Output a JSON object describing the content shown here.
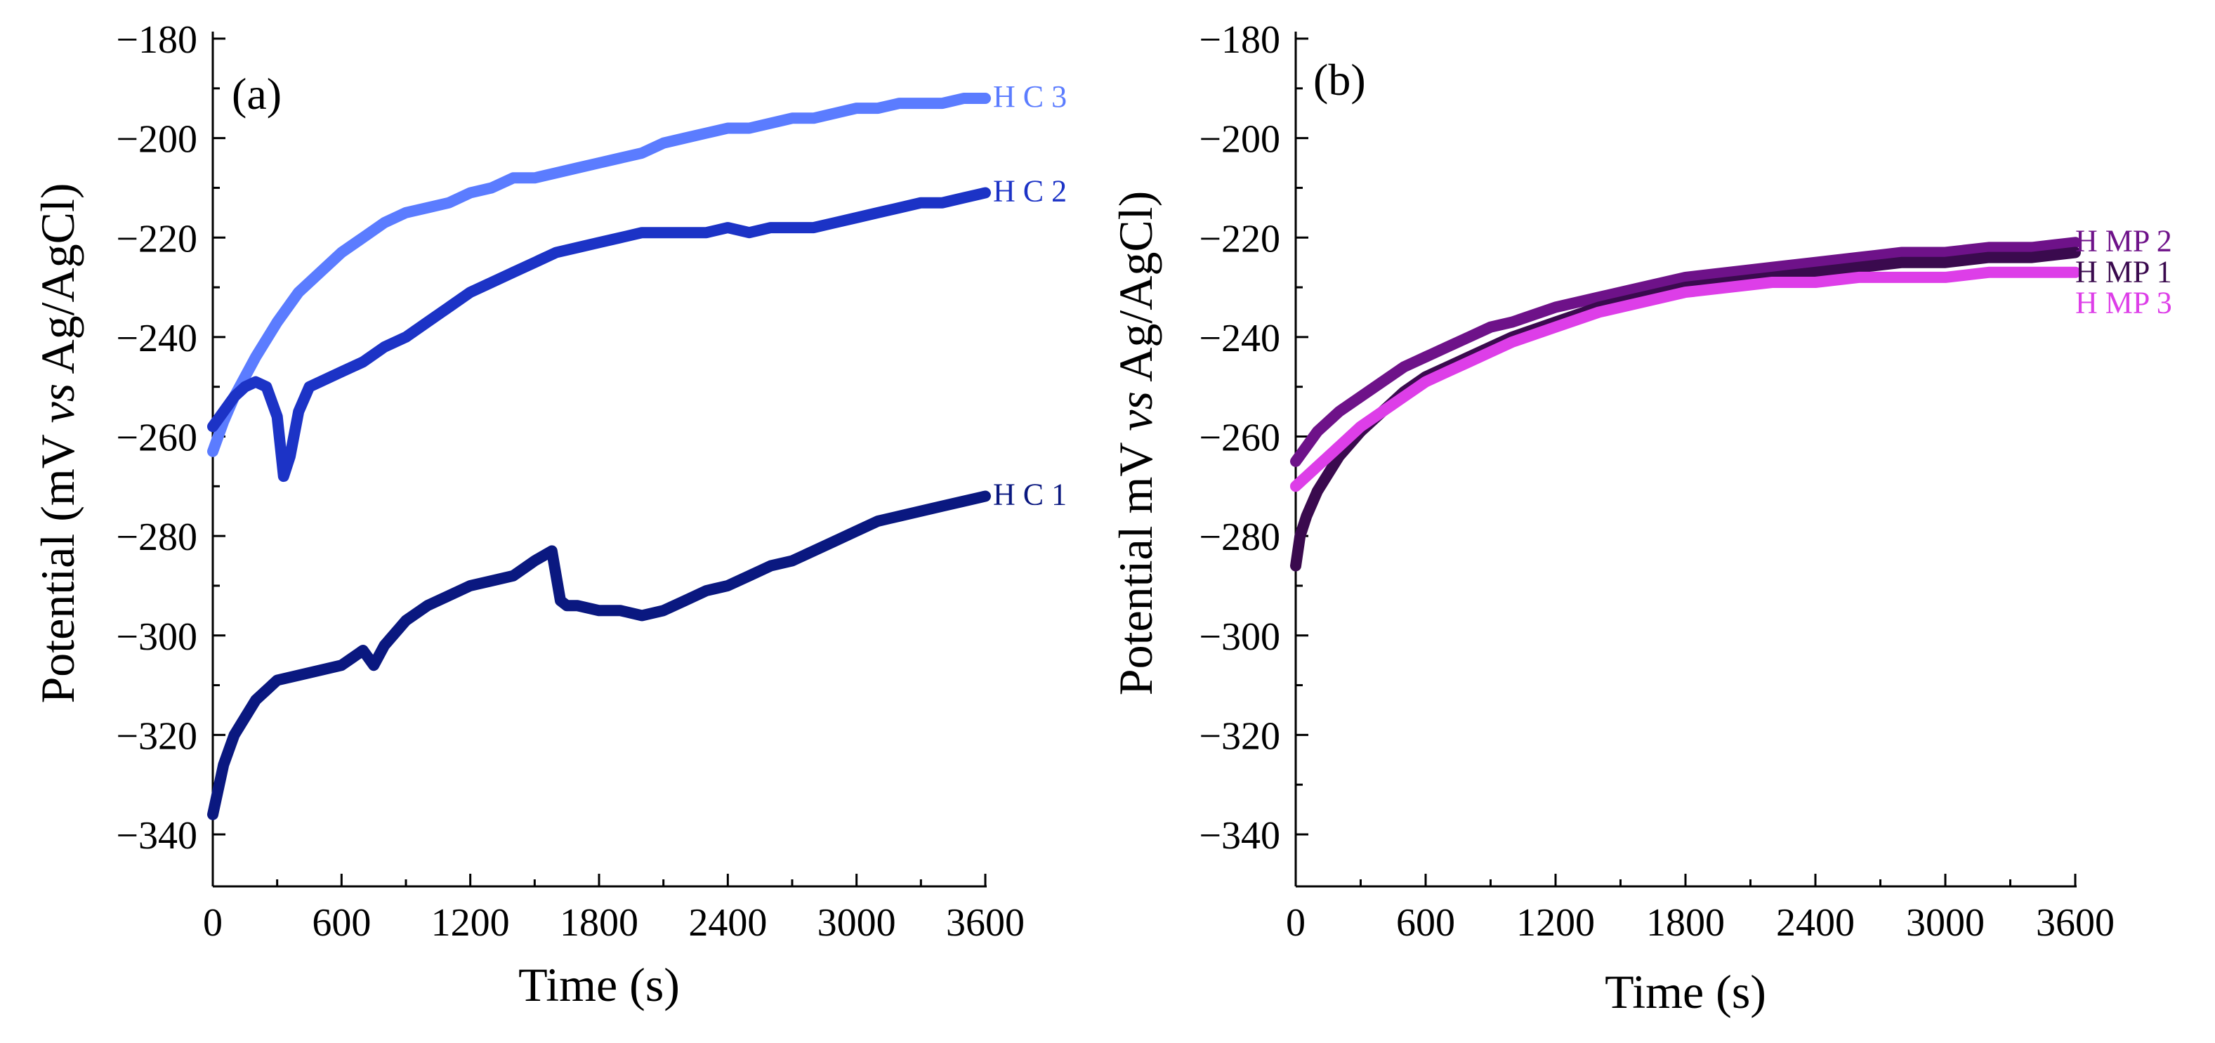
{
  "chart_data": [
    {
      "type": "line",
      "panel_label": "(a)",
      "xlabel": "Time (s)",
      "ylabel": "Potential (mV vs Ag/AgCl)",
      "ylabel_parts": {
        "pre": "Potential (mV ",
        "italic": "vs",
        "post": " Ag/AgCl)"
      },
      "xlim": [
        0,
        3600
      ],
      "ylim": [
        -350,
        -180
      ],
      "xticks": [
        0,
        600,
        1200,
        1800,
        2400,
        3000,
        3600
      ],
      "yticks": [
        -180,
        -200,
        -220,
        -240,
        -260,
        -280,
        -300,
        -320,
        -340
      ],
      "grid": false,
      "series": [
        {
          "name": "H C 3",
          "color": "#5b7cff",
          "x": [
            0,
            50,
            100,
            200,
            300,
            400,
            500,
            600,
            700,
            800,
            900,
            1000,
            1100,
            1200,
            1300,
            1400,
            1500,
            1600,
            1700,
            1800,
            1900,
            2000,
            2100,
            2200,
            2300,
            2400,
            2500,
            2600,
            2700,
            2800,
            2900,
            3000,
            3100,
            3200,
            3300,
            3400,
            3500,
            3600
          ],
          "y": [
            -263,
            -257,
            -252,
            -244,
            -237,
            -231,
            -227,
            -223,
            -220,
            -217,
            -215,
            -214,
            -213,
            -211,
            -210,
            -208,
            -208,
            -207,
            -206,
            -205,
            -204,
            -203,
            -201,
            -200,
            -199,
            -198,
            -198,
            -197,
            -196,
            -196,
            -195,
            -194,
            -194,
            -193,
            -193,
            -193,
            -192,
            -192
          ]
        },
        {
          "name": "H C 2",
          "color": "#1c33c6",
          "x": [
            0,
            50,
            100,
            150,
            200,
            250,
            300,
            330,
            360,
            400,
            450,
            500,
            600,
            700,
            800,
            900,
            1000,
            1100,
            1200,
            1300,
            1400,
            1500,
            1600,
            1700,
            1800,
            1900,
            2000,
            2100,
            2200,
            2300,
            2400,
            2500,
            2600,
            2700,
            2800,
            2900,
            3000,
            3100,
            3200,
            3300,
            3400,
            3500,
            3600
          ],
          "y": [
            -258,
            -255,
            -252,
            -250,
            -249,
            -250,
            -256,
            -268,
            -264,
            -255,
            -250,
            -249,
            -247,
            -245,
            -242,
            -240,
            -237,
            -234,
            -231,
            -229,
            -227,
            -225,
            -223,
            -222,
            -221,
            -220,
            -219,
            -219,
            -219,
            -219,
            -218,
            -219,
            -218,
            -218,
            -218,
            -217,
            -216,
            -215,
            -214,
            -213,
            -213,
            -212,
            -211
          ]
        },
        {
          "name": "H C 1",
          "color": "#0a1880",
          "x": [
            0,
            50,
            100,
            200,
            300,
            400,
            500,
            600,
            700,
            750,
            800,
            900,
            1000,
            1100,
            1200,
            1300,
            1400,
            1500,
            1580,
            1620,
            1650,
            1700,
            1800,
            1900,
            2000,
            2100,
            2200,
            2300,
            2400,
            2500,
            2600,
            2700,
            2800,
            2900,
            3000,
            3100,
            3200,
            3300,
            3400,
            3500,
            3600
          ],
          "y": [
            -336,
            -326,
            -320,
            -313,
            -309,
            -308,
            -307,
            -306,
            -303,
            -306,
            -302,
            -297,
            -294,
            -292,
            -290,
            -289,
            -288,
            -285,
            -283,
            -293,
            -294,
            -294,
            -295,
            -295,
            -296,
            -295,
            -293,
            -291,
            -290,
            -288,
            -286,
            -285,
            -283,
            -281,
            -279,
            -277,
            -276,
            -275,
            -274,
            -273,
            -272
          ]
        }
      ]
    },
    {
      "type": "line",
      "panel_label": "(b)",
      "xlabel": "Time (s)",
      "ylabel": "Potential mV vs Ag/AgCl)",
      "ylabel_parts": {
        "pre": "Potential mV ",
        "italic": "vs",
        "post": " Ag/AgCl)"
      },
      "xlim": [
        0,
        3600
      ],
      "ylim": [
        -350,
        -180
      ],
      "xticks": [
        0,
        600,
        1200,
        1800,
        2400,
        3000,
        3600
      ],
      "yticks": [
        -180,
        -200,
        -220,
        -240,
        -260,
        -280,
        -300,
        -320,
        -340
      ],
      "grid": false,
      "series": [
        {
          "name": "H MP 2",
          "color": "#6e1289",
          "x": [
            0,
            50,
            100,
            200,
            300,
            400,
            500,
            600,
            700,
            800,
            900,
            1000,
            1200,
            1400,
            1600,
            1800,
            2000,
            2200,
            2400,
            2600,
            2800,
            3000,
            3200,
            3400,
            3600
          ],
          "y": [
            -265,
            -262,
            -259,
            -255,
            -252,
            -249,
            -246,
            -244,
            -242,
            -240,
            -238,
            -237,
            -234,
            -232,
            -230,
            -228,
            -227,
            -226,
            -225,
            -224,
            -223,
            -223,
            -222,
            -222,
            -221
          ]
        },
        {
          "name": "H MP 1",
          "color": "#3a0a4e",
          "x": [
            0,
            20,
            50,
            100,
            200,
            300,
            400,
            500,
            600,
            700,
            800,
            900,
            1000,
            1200,
            1400,
            1600,
            1800,
            2000,
            2200,
            2400,
            2600,
            2800,
            3000,
            3200,
            3400,
            3600
          ],
          "y": [
            -286,
            -280,
            -276,
            -271,
            -264,
            -259,
            -255,
            -251,
            -248,
            -246,
            -244,
            -242,
            -240,
            -237,
            -234,
            -232,
            -230,
            -229,
            -228,
            -227,
            -226,
            -225,
            -225,
            -224,
            -224,
            -223
          ]
        },
        {
          "name": "H MP 3",
          "color": "#dd3ee8",
          "x": [
            0,
            50,
            100,
            200,
            300,
            400,
            500,
            600,
            700,
            800,
            900,
            1000,
            1200,
            1400,
            1600,
            1800,
            2000,
            2200,
            2400,
            2600,
            2800,
            3000,
            3200,
            3400,
            3600
          ],
          "y": [
            -270,
            -268,
            -266,
            -262,
            -258,
            -255,
            -252,
            -249,
            -247,
            -245,
            -243,
            -241,
            -238,
            -235,
            -233,
            -231,
            -230,
            -229,
            -229,
            -228,
            -228,
            -228,
            -227,
            -227,
            -227
          ]
        }
      ]
    }
  ]
}
